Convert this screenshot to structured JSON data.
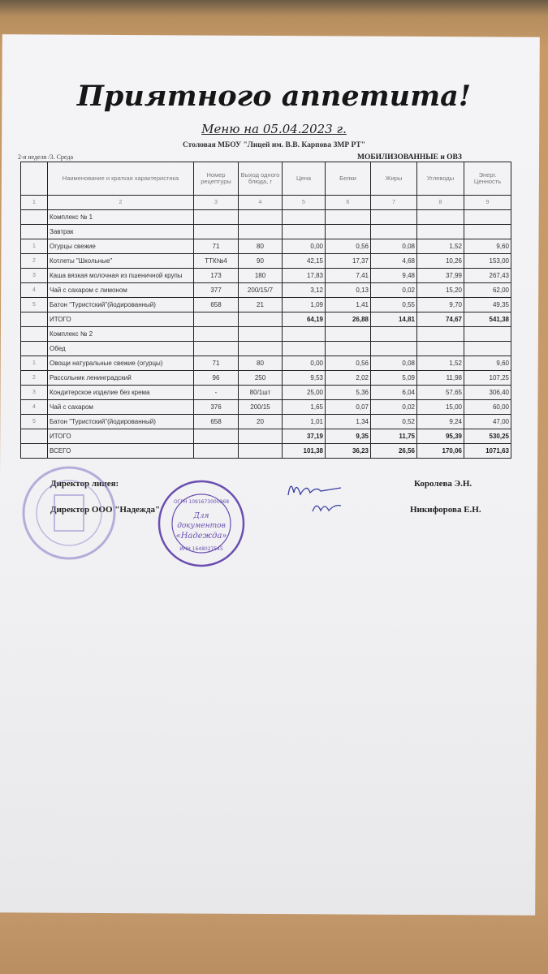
{
  "title": "Приятного аппетита!",
  "subtitle": "Меню на 05.04.2023 г.",
  "canteen": "Столовая МБОУ \"Лицей им. В.В. Карпова ЗМР РТ\"",
  "week": "2-я неделя /3. Среда",
  "group": "МОБИЛИЗОВАННЫЕ и ОВЗ",
  "columns": [
    "",
    "Наименование и краткая характеристика",
    "Номер рецептуры",
    "Выход одного блюда, г",
    "Цена",
    "Белки",
    "Жиры",
    "Углеводы",
    "Энерг. Ценность"
  ],
  "column_numbers": [
    "1",
    "2",
    "3",
    "4",
    "5",
    "6",
    "7",
    "8",
    "9"
  ],
  "complex1": {
    "label": "Комплекс № 1",
    "meal": "Завтрак",
    "rows": [
      [
        "1",
        "Огурцы свежие",
        "71",
        "80",
        "0,00",
        "0,56",
        "0,08",
        "1,52",
        "9,60"
      ],
      [
        "2",
        "Котлеты \"Школьные\"",
        "ТТК№4",
        "90",
        "42,15",
        "17,37",
        "4,68",
        "10,26",
        "153,00"
      ],
      [
        "3",
        "Каша вязкая молочная из пшеничной крупы",
        "173",
        "180",
        "17,83",
        "7,41",
        "9,48",
        "37,99",
        "267,43"
      ],
      [
        "4",
        "Чай с сахаром с лимоном",
        "377",
        "200/15/7",
        "3,12",
        "0,13",
        "0,02",
        "15,20",
        "62,00"
      ],
      [
        "5",
        "Батон \"Туристский\"(йодированный)",
        "658",
        "21",
        "1,09",
        "1,41",
        "0,55",
        "9,70",
        "49,35"
      ]
    ],
    "total": [
      "ИТОГО",
      "64,19",
      "26,88",
      "14,81",
      "74,67",
      "541,38"
    ]
  },
  "complex2": {
    "label": "Комплекс № 2",
    "meal": "Обед",
    "rows": [
      [
        "1",
        "Овощи натуральные свежие (огурцы)",
        "71",
        "80",
        "0,00",
        "0,56",
        "0,08",
        "1,52",
        "9,60"
      ],
      [
        "2",
        "Рассольник ленинградский",
        "96",
        "250",
        "9,53",
        "2,02",
        "5,09",
        "11,98",
        "107,25"
      ],
      [
        "3",
        "Кондитерское изделие без крема",
        "-",
        "80/1шт",
        "25,00",
        "5,36",
        "6,04",
        "57,65",
        "306,40"
      ],
      [
        "4",
        "Чай с сахаром",
        "376",
        "200/15",
        "1,65",
        "0,07",
        "0,02",
        "15,00",
        "60,00"
      ],
      [
        "5",
        "Батон \"Туристский\"(йодированный)",
        "658",
        "20",
        "1,01",
        "1,34",
        "0,52",
        "9,24",
        "47,00"
      ]
    ],
    "total": [
      "ИТОГО",
      "37,19",
      "9,35",
      "11,75",
      "95,39",
      "530,25"
    ]
  },
  "grand_total": [
    "ВСЕГО",
    "101,38",
    "36,23",
    "26,56",
    "170,06",
    "1071,63"
  ],
  "signatures": {
    "director_label": "Директор  лицея:",
    "director_name": "Королева Э.Н.",
    "ooo_label": "Директор ООО \"Надежда\"",
    "ooo_name": "Никифорова Е.Н."
  },
  "stamp": {
    "center": "Для документов «Надежда»",
    "ogrn": "ОГРН 1091673000368",
    "inn": "ИНН 1648027545"
  },
  "colors": {
    "stamp": "#6a4fb0",
    "paper": "#f2f2f4",
    "wood": "#c59a6c"
  }
}
